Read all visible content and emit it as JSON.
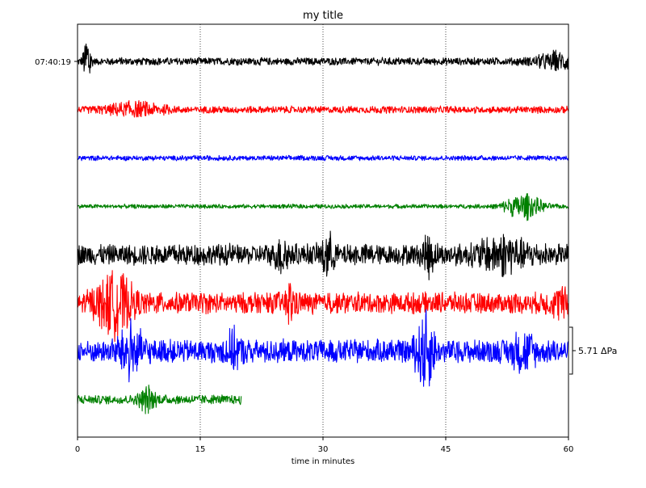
{
  "chart_data": {
    "type": "line",
    "subtype": "dayplot",
    "title": "my title",
    "xlabel": "time in minutes",
    "xlim": [
      0,
      60
    ],
    "x_ticks": [
      0,
      15,
      30,
      45,
      60
    ],
    "x_tick_labels": [
      "0",
      "15",
      "30",
      "45",
      "60"
    ],
    "vertical_gridlines_at": [
      15,
      30,
      45
    ],
    "grid": "vertical-dotted",
    "y_tick_labels": [
      "07:40:19"
    ],
    "scale_label": "5.71 ΔPa",
    "scale_value": 5.71,
    "scale_unit": "ΔPa",
    "colors": [
      "#000000",
      "#ff0000",
      "#0000ff",
      "#008000"
    ],
    "traces": [
      {
        "color": "#000000",
        "start_min": 0,
        "end_min": 60,
        "amplitude": 0.18,
        "events": [
          {
            "t": 1.2,
            "amp": 1.55,
            "dur": 0.6
          },
          {
            "t": 59,
            "amp": 0.35,
            "dur": 4
          }
        ]
      },
      {
        "color": "#ff0000",
        "start_min": 0,
        "end_min": 60,
        "amplitude": 0.17,
        "events": [
          {
            "t": 7,
            "amp": 0.25,
            "dur": 5
          }
        ]
      },
      {
        "color": "#0000ff",
        "start_min": 0,
        "end_min": 60,
        "amplitude": 0.12,
        "events": []
      },
      {
        "color": "#008000",
        "start_min": 0,
        "end_min": 60,
        "amplitude": 0.1,
        "events": [
          {
            "t": 54.5,
            "amp": 0.6,
            "dur": 3
          }
        ]
      },
      {
        "color": "#000000",
        "start_min": 0,
        "end_min": 60,
        "amplitude": 0.5,
        "events": [
          {
            "t": 25,
            "amp": 0.7,
            "dur": 1
          },
          {
            "t": 30.5,
            "amp": 0.85,
            "dur": 1
          },
          {
            "t": 43,
            "amp": 0.7,
            "dur": 1
          },
          {
            "t": 52,
            "amp": 0.6,
            "dur": 4
          }
        ]
      },
      {
        "color": "#ff0000",
        "start_min": 0,
        "end_min": 60,
        "amplitude": 0.5,
        "events": [
          {
            "t": 4.5,
            "amp": 1.2,
            "dur": 3
          },
          {
            "t": 26,
            "amp": 0.6,
            "dur": 1
          },
          {
            "t": 59,
            "amp": 0.4,
            "dur": 2
          }
        ]
      },
      {
        "color": "#0000ff",
        "start_min": 0,
        "end_min": 60,
        "amplitude": 0.55,
        "events": [
          {
            "t": 6.5,
            "amp": 1.0,
            "dur": 2
          },
          {
            "t": 19,
            "amp": 0.6,
            "dur": 1.5
          },
          {
            "t": 42.5,
            "amp": 1.5,
            "dur": 1.5
          },
          {
            "t": 54.5,
            "amp": 0.6,
            "dur": 2
          }
        ]
      },
      {
        "color": "#008000",
        "start_min": 0,
        "end_min": 20,
        "amplitude": 0.22,
        "events": [
          {
            "t": 8.5,
            "amp": 0.5,
            "dur": 1.5
          }
        ]
      }
    ]
  }
}
